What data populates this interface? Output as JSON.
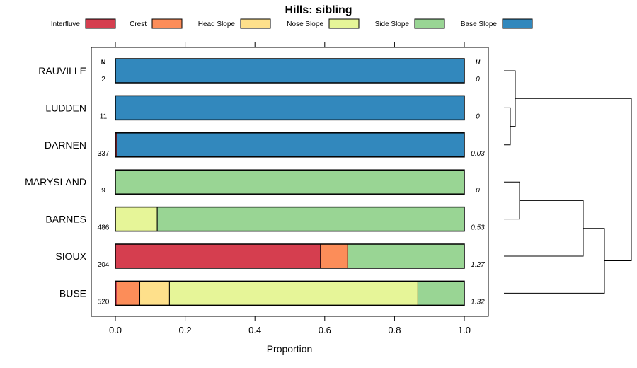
{
  "chart_data": {
    "type": "bar",
    "orientation": "horizontal",
    "stacked": true,
    "title": "Hills: sibling",
    "xlabel": "Proportion",
    "ylabel": "",
    "xlim": [
      0,
      1
    ],
    "x_ticks": [
      "0.0",
      "0.2",
      "0.4",
      "0.6",
      "0.8",
      "1.0"
    ],
    "grid": false,
    "legend_position": "top",
    "n_header": "N",
    "h_header": "H",
    "categories": [
      "RAUVILLE",
      "LUDDEN",
      "DARNEN",
      "MARYSLAND",
      "BARNES",
      "SIOUX",
      "BUSE"
    ],
    "n_values": [
      "2",
      "11",
      "337",
      "9",
      "486",
      "204",
      "520"
    ],
    "h_values": [
      "0",
      "0",
      "0.03",
      "0",
      "0.53",
      "1.27",
      "1.32"
    ],
    "series": [
      {
        "name": "Interfluve",
        "color": "#D53E4F",
        "values": [
          0,
          0,
          0.004,
          0,
          0,
          0.588,
          0.005
        ]
      },
      {
        "name": "Crest",
        "color": "#FC8D59",
        "values": [
          0,
          0,
          0,
          0,
          0,
          0.078,
          0.065
        ]
      },
      {
        "name": "Head Slope",
        "color": "#FEE08B",
        "values": [
          0,
          0,
          0,
          0,
          0,
          0,
          0.085
        ]
      },
      {
        "name": "Nose Slope",
        "color": "#E6F598",
        "values": [
          0,
          0,
          0,
          0,
          0.12,
          0,
          0.712
        ]
      },
      {
        "name": "Side Slope",
        "color": "#99D594",
        "values": [
          0,
          0,
          0,
          1.0,
          0.88,
          0.334,
          0.133
        ]
      },
      {
        "name": "Base Slope",
        "color": "#3288BD",
        "values": [
          1.0,
          1.0,
          0.996,
          0,
          0,
          0,
          0
        ]
      }
    ],
    "dendrogram": {
      "merges": [
        [
          "LUDDEN",
          "DARNEN"
        ],
        [
          "RAUVILLE",
          "LUDDEN+DARNEN"
        ],
        [
          "MARYSLAND",
          "BARNES"
        ],
        [
          "SIOUX",
          "MARYSLAND+BARNES"
        ],
        [
          "BUSE",
          "SIOUX+MARYSLAND+BARNES"
        ],
        [
          "RAUVILLE+LUDDEN+DARNEN",
          "BUSE+SIOUX+MARYSLAND+BARNES"
        ]
      ]
    }
  }
}
